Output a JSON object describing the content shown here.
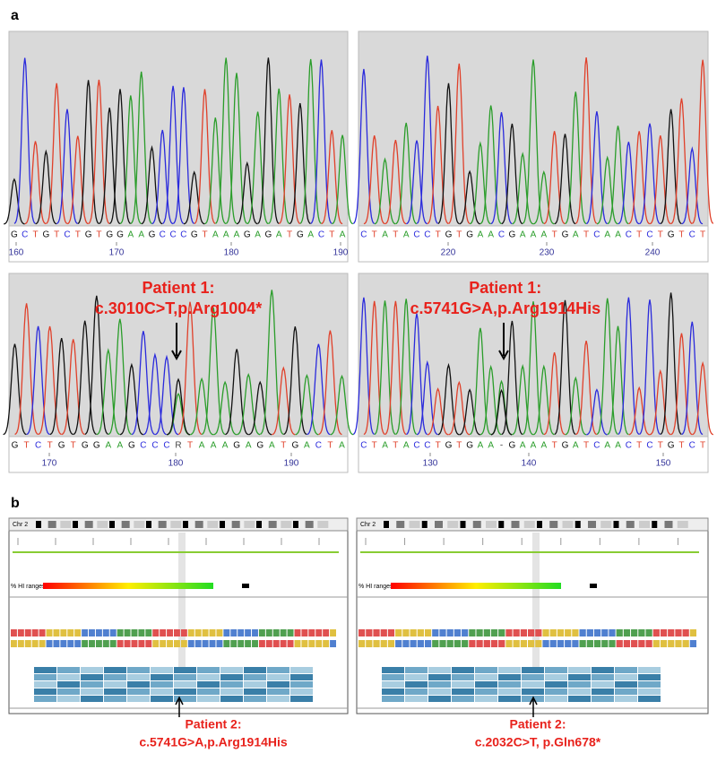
{
  "panel_a": {
    "label": "a",
    "chromatograms": [
      {
        "sequence": [
          "G",
          "C",
          "T",
          "G",
          "T",
          "C",
          "T",
          "G",
          "T",
          "G",
          "G",
          "A",
          "A",
          "G",
          "C",
          "C",
          "C",
          "G",
          "T",
          "A",
          "A",
          "A",
          "G",
          "A",
          "G",
          "A",
          "T",
          "G",
          "A",
          "C",
          "T",
          "A"
        ],
        "positions": [
          160,
          170,
          180,
          190
        ]
      },
      {
        "sequence": [
          "C",
          "T",
          "A",
          "T",
          "A",
          "C",
          "C",
          "T",
          "G",
          "T",
          "G",
          "A",
          "A",
          "C",
          "G",
          "A",
          "A",
          "A",
          "T",
          "G",
          "A",
          "T",
          "C",
          "A",
          "A",
          "C",
          "T",
          "C",
          "T",
          "G",
          "T",
          "C",
          "T"
        ],
        "positions": [
          220,
          230,
          240
        ]
      },
      {
        "sequence": [
          "G",
          "T",
          "C",
          "T",
          "G",
          "T",
          "G",
          "G",
          "A",
          "A",
          "G",
          "C",
          "C",
          "C",
          "R",
          "T",
          "A",
          "A",
          "A",
          "G",
          "A",
          "G",
          "A",
          "T",
          "G",
          "A",
          "C",
          "T",
          "A"
        ],
        "positions": [
          170,
          180,
          190
        ],
        "annotation": [
          "Patient 1:",
          "c.3010C>T,p.Arg1004*"
        ]
      },
      {
        "sequence": [
          "C",
          "T",
          "A",
          "T",
          "A",
          "C",
          "C",
          "T",
          "G",
          "T",
          "G",
          "A",
          "A",
          "-",
          "G",
          "A",
          "A",
          "A",
          "T",
          "G",
          "A",
          "T",
          "C",
          "A",
          "A",
          "C",
          "T",
          "C",
          "T",
          "G",
          "T",
          "C",
          "T"
        ],
        "positions": [
          130,
          140,
          150
        ],
        "annotation": [
          "Patient 1:",
          "c.5741G>A,p.Arg1914His"
        ]
      }
    ]
  },
  "panel_b": {
    "label": "b",
    "browsers": [
      {
        "chromosome": "Chr 2",
        "hi_label": "% HI ranges:",
        "annotation": [
          "Patient 2:",
          "c.5741G>A,p.Arg1914His"
        ]
      },
      {
        "chromosome": "Chr 2",
        "hi_label": "% HI ranges:",
        "annotation": [
          "Patient 2:",
          "c.2032C>T, p.Gln678*"
        ]
      }
    ]
  }
}
